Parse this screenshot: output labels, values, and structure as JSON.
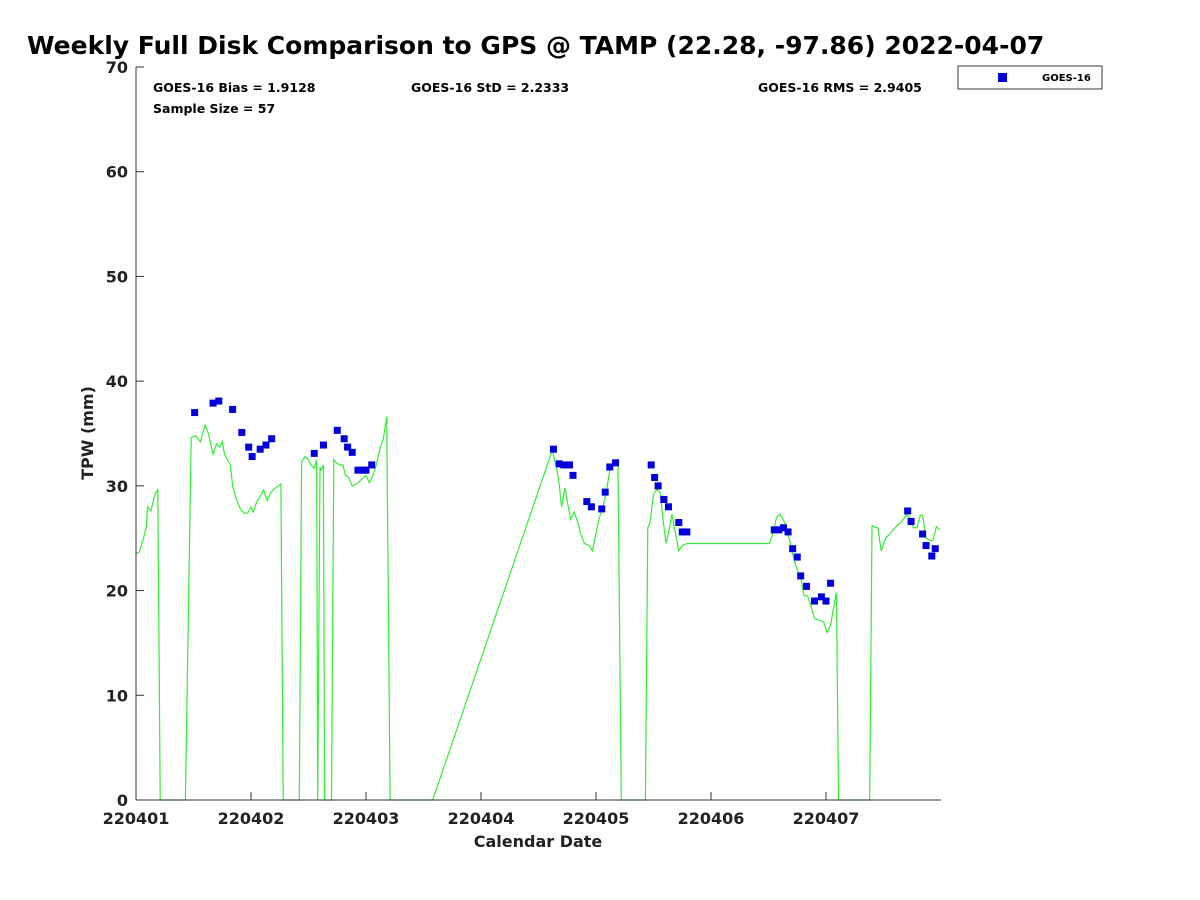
{
  "chart_data": {
    "type": "scatter",
    "title": "Weekly Full Disk Comparison to GPS @ TAMP (22.28, -97.86) 2022-04-07",
    "xlabel": "Calendar Date",
    "ylabel": "TPW (mm)",
    "xlim": [
      0,
      7
    ],
    "ylim": [
      0,
      70
    ],
    "x_ticks": [
      {
        "value": 0,
        "label": "220401"
      },
      {
        "value": 1,
        "label": "220402"
      },
      {
        "value": 2,
        "label": "220403"
      },
      {
        "value": 3,
        "label": "220404"
      },
      {
        "value": 4,
        "label": "220405"
      },
      {
        "value": 5,
        "label": "220406"
      },
      {
        "value": 6,
        "label": "220407"
      }
    ],
    "y_ticks": [
      0,
      10,
      20,
      30,
      40,
      50,
      60,
      70
    ],
    "grid": false,
    "legend_position": "top-right, outside plot",
    "stats": {
      "bias": "GOES-16 Bias = 1.9128",
      "std": "GOES-16 StD = 2.2333",
      "rms": "GOES-16 RMS = 2.9405",
      "sample": "Sample Size = 57"
    },
    "series": [
      {
        "name": "GOES-16",
        "kind": "scatter",
        "marker": "square",
        "color": "#0000dd",
        "points": [
          [
            0.51,
            37.0
          ],
          [
            0.67,
            37.9
          ],
          [
            0.72,
            38.1
          ],
          [
            0.84,
            37.3
          ],
          [
            0.92,
            35.1
          ],
          [
            0.98,
            33.7
          ],
          [
            1.01,
            32.8
          ],
          [
            1.08,
            33.5
          ],
          [
            1.13,
            33.9
          ],
          [
            1.18,
            34.5
          ],
          [
            1.55,
            33.1
          ],
          [
            1.63,
            33.9
          ],
          [
            1.75,
            35.3
          ],
          [
            1.81,
            34.5
          ],
          [
            1.84,
            33.7
          ],
          [
            1.88,
            33.2
          ],
          [
            1.93,
            31.5
          ],
          [
            1.97,
            31.5
          ],
          [
            2.0,
            31.5
          ],
          [
            2.05,
            32.0
          ],
          [
            3.63,
            33.5
          ],
          [
            3.68,
            32.1
          ],
          [
            3.72,
            32.0
          ],
          [
            3.77,
            32.0
          ],
          [
            3.8,
            31.0
          ],
          [
            3.92,
            28.5
          ],
          [
            3.96,
            28.0
          ],
          [
            4.05,
            27.8
          ],
          [
            4.08,
            29.4
          ],
          [
            4.12,
            31.8
          ],
          [
            4.17,
            32.2
          ],
          [
            4.48,
            32.0
          ],
          [
            4.51,
            30.8
          ],
          [
            4.54,
            30.0
          ],
          [
            4.59,
            28.7
          ],
          [
            4.63,
            28.0
          ],
          [
            4.72,
            26.5
          ],
          [
            4.75,
            25.6
          ],
          [
            4.79,
            25.6
          ],
          [
            5.55,
            25.8
          ],
          [
            5.59,
            25.8
          ],
          [
            5.63,
            26.0
          ],
          [
            5.67,
            25.6
          ],
          [
            5.71,
            24.0
          ],
          [
            5.75,
            23.2
          ],
          [
            5.78,
            21.4
          ],
          [
            5.83,
            20.4
          ],
          [
            5.9,
            19.0
          ],
          [
            5.96,
            19.4
          ],
          [
            6.0,
            19.0
          ],
          [
            6.04,
            20.7
          ],
          [
            6.71,
            27.6
          ],
          [
            6.74,
            26.6
          ],
          [
            6.84,
            25.4
          ],
          [
            6.87,
            24.3
          ],
          [
            6.92,
            23.3
          ],
          [
            6.95,
            24.0
          ]
        ]
      },
      {
        "name": "",
        "kind": "line",
        "color": "#33ee33",
        "points": [
          [
            0.0,
            23.5
          ],
          [
            0.03,
            23.7
          ],
          [
            0.06,
            24.8
          ],
          [
            0.09,
            26.0
          ],
          [
            0.1,
            28.0
          ],
          [
            0.13,
            27.6
          ],
          [
            0.16,
            29.0
          ],
          [
            0.19,
            29.7
          ],
          [
            0.21,
            0
          ],
          [
            0.43,
            0
          ],
          [
            0.48,
            34.6
          ],
          [
            0.52,
            34.8
          ],
          [
            0.56,
            34.2
          ],
          [
            0.6,
            35.8
          ],
          [
            0.63,
            35.0
          ],
          [
            0.67,
            33.0
          ],
          [
            0.7,
            34.0
          ],
          [
            0.73,
            33.7
          ],
          [
            0.75,
            34.2
          ],
          [
            0.77,
            33.0
          ],
          [
            0.82,
            32.0
          ],
          [
            0.84,
            30.0
          ],
          [
            0.87,
            28.8
          ],
          [
            0.91,
            27.7
          ],
          [
            0.94,
            27.4
          ],
          [
            0.97,
            27.4
          ],
          [
            1.0,
            28.0
          ],
          [
            1.02,
            27.5
          ],
          [
            1.05,
            28.5
          ],
          [
            1.08,
            29.0
          ],
          [
            1.11,
            29.6
          ],
          [
            1.14,
            28.6
          ],
          [
            1.17,
            29.3
          ],
          [
            1.2,
            29.7
          ],
          [
            1.26,
            30.2
          ],
          [
            1.28,
            0
          ],
          [
            1.42,
            0
          ],
          [
            1.44,
            32.3
          ],
          [
            1.47,
            32.8
          ],
          [
            1.5,
            32.5
          ],
          [
            1.52,
            32.0
          ],
          [
            1.55,
            31.7
          ],
          [
            1.57,
            32.5
          ],
          [
            1.58,
            0
          ],
          [
            1.6,
            31.8
          ],
          [
            1.61,
            31.5
          ],
          [
            1.63,
            32.0
          ],
          [
            1.64,
            0
          ],
          [
            1.7,
            0
          ],
          [
            1.72,
            32.5
          ],
          [
            1.74,
            32.2
          ],
          [
            1.77,
            32.0
          ],
          [
            1.8,
            32.0
          ],
          [
            1.82,
            31.0
          ],
          [
            1.85,
            30.8
          ],
          [
            1.88,
            30.0
          ],
          [
            1.92,
            30.2
          ],
          [
            1.96,
            30.6
          ],
          [
            2.0,
            31.0
          ],
          [
            2.03,
            30.3
          ],
          [
            2.06,
            31.0
          ],
          [
            2.09,
            32.0
          ],
          [
            2.12,
            33.5
          ],
          [
            2.15,
            34.5
          ],
          [
            2.18,
            36.6
          ],
          [
            2.21,
            0
          ],
          [
            2.58,
            0
          ],
          [
            3.62,
            33.4
          ],
          [
            3.66,
            31.5
          ],
          [
            3.68,
            30.2
          ],
          [
            3.7,
            28.0
          ],
          [
            3.73,
            29.8
          ],
          [
            3.75,
            28.5
          ],
          [
            3.78,
            26.8
          ],
          [
            3.81,
            27.5
          ],
          [
            3.84,
            26.6
          ],
          [
            3.87,
            25.3
          ],
          [
            3.9,
            24.5
          ],
          [
            3.94,
            24.3
          ],
          [
            3.97,
            23.8
          ],
          [
            4.0,
            25.5
          ],
          [
            4.03,
            27.0
          ],
          [
            4.06,
            28.0
          ],
          [
            4.09,
            29.5
          ],
          [
            4.12,
            31.5
          ],
          [
            4.16,
            32.2
          ],
          [
            4.19,
            32.5
          ],
          [
            4.22,
            0
          ],
          [
            4.43,
            0
          ],
          [
            4.45,
            26.0
          ],
          [
            4.47,
            26.5
          ],
          [
            4.5,
            29.2
          ],
          [
            4.53,
            29.7
          ],
          [
            4.56,
            29.3
          ],
          [
            4.58,
            27.0
          ],
          [
            4.61,
            24.5
          ],
          [
            4.64,
            26.0
          ],
          [
            4.66,
            27.3
          ],
          [
            4.69,
            25.5
          ],
          [
            4.72,
            23.8
          ],
          [
            4.75,
            24.3
          ],
          [
            4.79,
            24.5
          ],
          [
            4.84,
            24.5
          ],
          [
            5.51,
            24.5
          ],
          [
            5.54,
            25.5
          ],
          [
            5.57,
            27.0
          ],
          [
            5.6,
            27.3
          ],
          [
            5.64,
            26.5
          ],
          [
            5.68,
            25.0
          ],
          [
            5.71,
            23.5
          ],
          [
            5.74,
            22.3
          ],
          [
            5.78,
            21.2
          ],
          [
            5.81,
            19.5
          ],
          [
            5.84,
            19.5
          ],
          [
            5.87,
            18.5
          ],
          [
            5.9,
            17.3
          ],
          [
            5.94,
            17.2
          ],
          [
            5.98,
            17.0
          ],
          [
            6.01,
            16.0
          ],
          [
            6.04,
            16.7
          ],
          [
            6.06,
            18.0
          ],
          [
            6.09,
            19.8
          ],
          [
            6.11,
            0
          ],
          [
            6.38,
            0
          ],
          [
            6.4,
            26.2
          ],
          [
            6.43,
            26.0
          ],
          [
            6.45,
            26.0
          ],
          [
            6.48,
            23.8
          ],
          [
            6.52,
            25.0
          ],
          [
            6.56,
            25.5
          ],
          [
            6.6,
            26.0
          ],
          [
            6.65,
            26.5
          ],
          [
            6.7,
            27.2
          ],
          [
            6.73,
            27.0
          ],
          [
            6.76,
            26.0
          ],
          [
            6.79,
            26.0
          ],
          [
            6.82,
            27.2
          ],
          [
            6.84,
            27.2
          ],
          [
            6.87,
            25.0
          ],
          [
            6.9,
            24.8
          ],
          [
            6.93,
            24.8
          ],
          [
            6.96,
            26.1
          ],
          [
            6.99,
            25.8
          ]
        ]
      }
    ]
  }
}
